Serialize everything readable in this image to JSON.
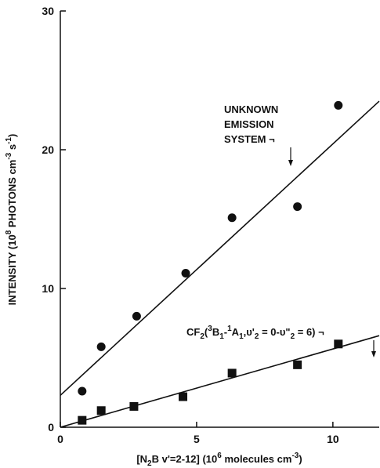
{
  "chart_data": {
    "type": "scatter",
    "xlim": [
      0,
      11.7
    ],
    "ylim": [
      0,
      30
    ],
    "xticks": [
      0,
      5,
      10
    ],
    "yticks": [
      0,
      10,
      20,
      30
    ],
    "grid": false,
    "xlabel": {
      "pre": "[N",
      "sub1": "2",
      "mid": "B v'=2-12] (10",
      "sup": "6",
      "post": " molecules cm",
      "sup2": "-3",
      "close": ")"
    },
    "ylabel": {
      "pre": "INTENSITY (10",
      "sup": "8",
      "mid": " PHOTONS  cm",
      "sup2": "-3",
      "mid2": " s",
      "sup3": "-1",
      "close": ")"
    },
    "series": [
      {
        "marker": "circle",
        "points": [
          [
            0.8,
            2.6
          ],
          [
            1.5,
            5.8
          ],
          [
            2.8,
            8.0
          ],
          [
            4.6,
            11.1
          ],
          [
            6.3,
            15.1
          ],
          [
            8.7,
            15.9
          ],
          [
            10.2,
            23.2
          ]
        ],
        "fit": [
          [
            0,
            2.3
          ],
          [
            11.7,
            23.5
          ]
        ],
        "annotation": {
          "lines": [
            "UNKNOWN",
            "EMISSION",
            "SYSTEM"
          ],
          "marker": "¬"
        }
      },
      {
        "marker": "square",
        "points": [
          [
            0.8,
            0.5
          ],
          [
            1.5,
            1.2
          ],
          [
            2.7,
            1.5
          ],
          [
            4.5,
            2.2
          ],
          [
            6.3,
            3.9
          ],
          [
            8.7,
            4.5
          ],
          [
            10.2,
            6.0
          ]
        ],
        "fit": [
          [
            0,
            0.0
          ],
          [
            11.7,
            6.6
          ]
        ],
        "annotation": {
          "pre": "CF",
          "sub1": "2",
          "open": "(",
          "sup1": "3",
          "b": "B",
          "sub2": "1",
          "dash": "-",
          "sup2": "1",
          "a": "A",
          "sub3": "1",
          "rest1": ",υ'",
          "sub4": "2",
          "rest2": " = 0-υ\"",
          "sub5": "2",
          "rest3": " = 6)  ¬"
        }
      }
    ]
  }
}
